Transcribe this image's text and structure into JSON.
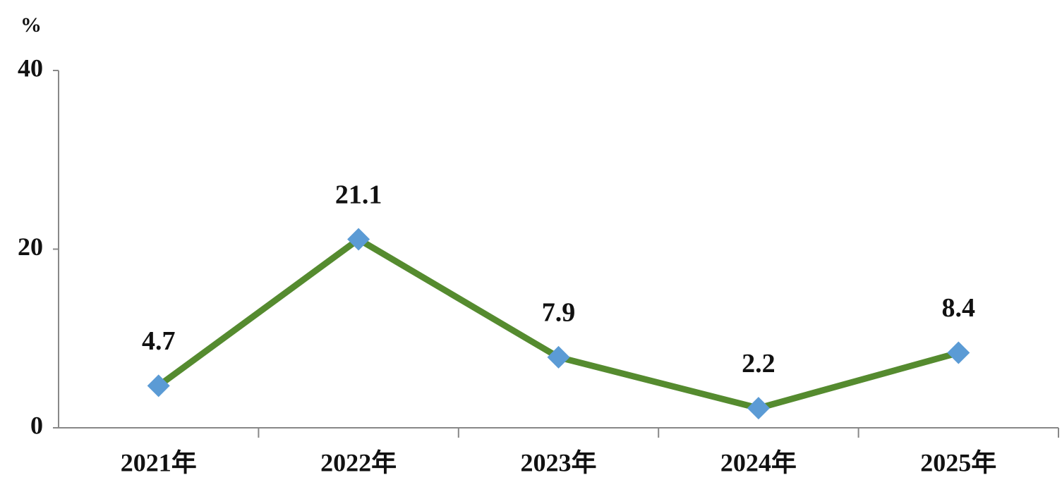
{
  "chart_data": {
    "type": "line",
    "y_label": "%",
    "categories": [
      "2021年",
      "2022年",
      "2023年",
      "2024年",
      "2025年"
    ],
    "series": [
      {
        "color": "#558b2f",
        "marker_color": "#5b9bd5",
        "values": [
          4.7,
          21.1,
          7.9,
          2.2,
          8.4
        ]
      }
    ],
    "ylim": [
      0,
      40
    ],
    "yticks": [
      0,
      20,
      40
    ],
    "data_labels": true
  }
}
